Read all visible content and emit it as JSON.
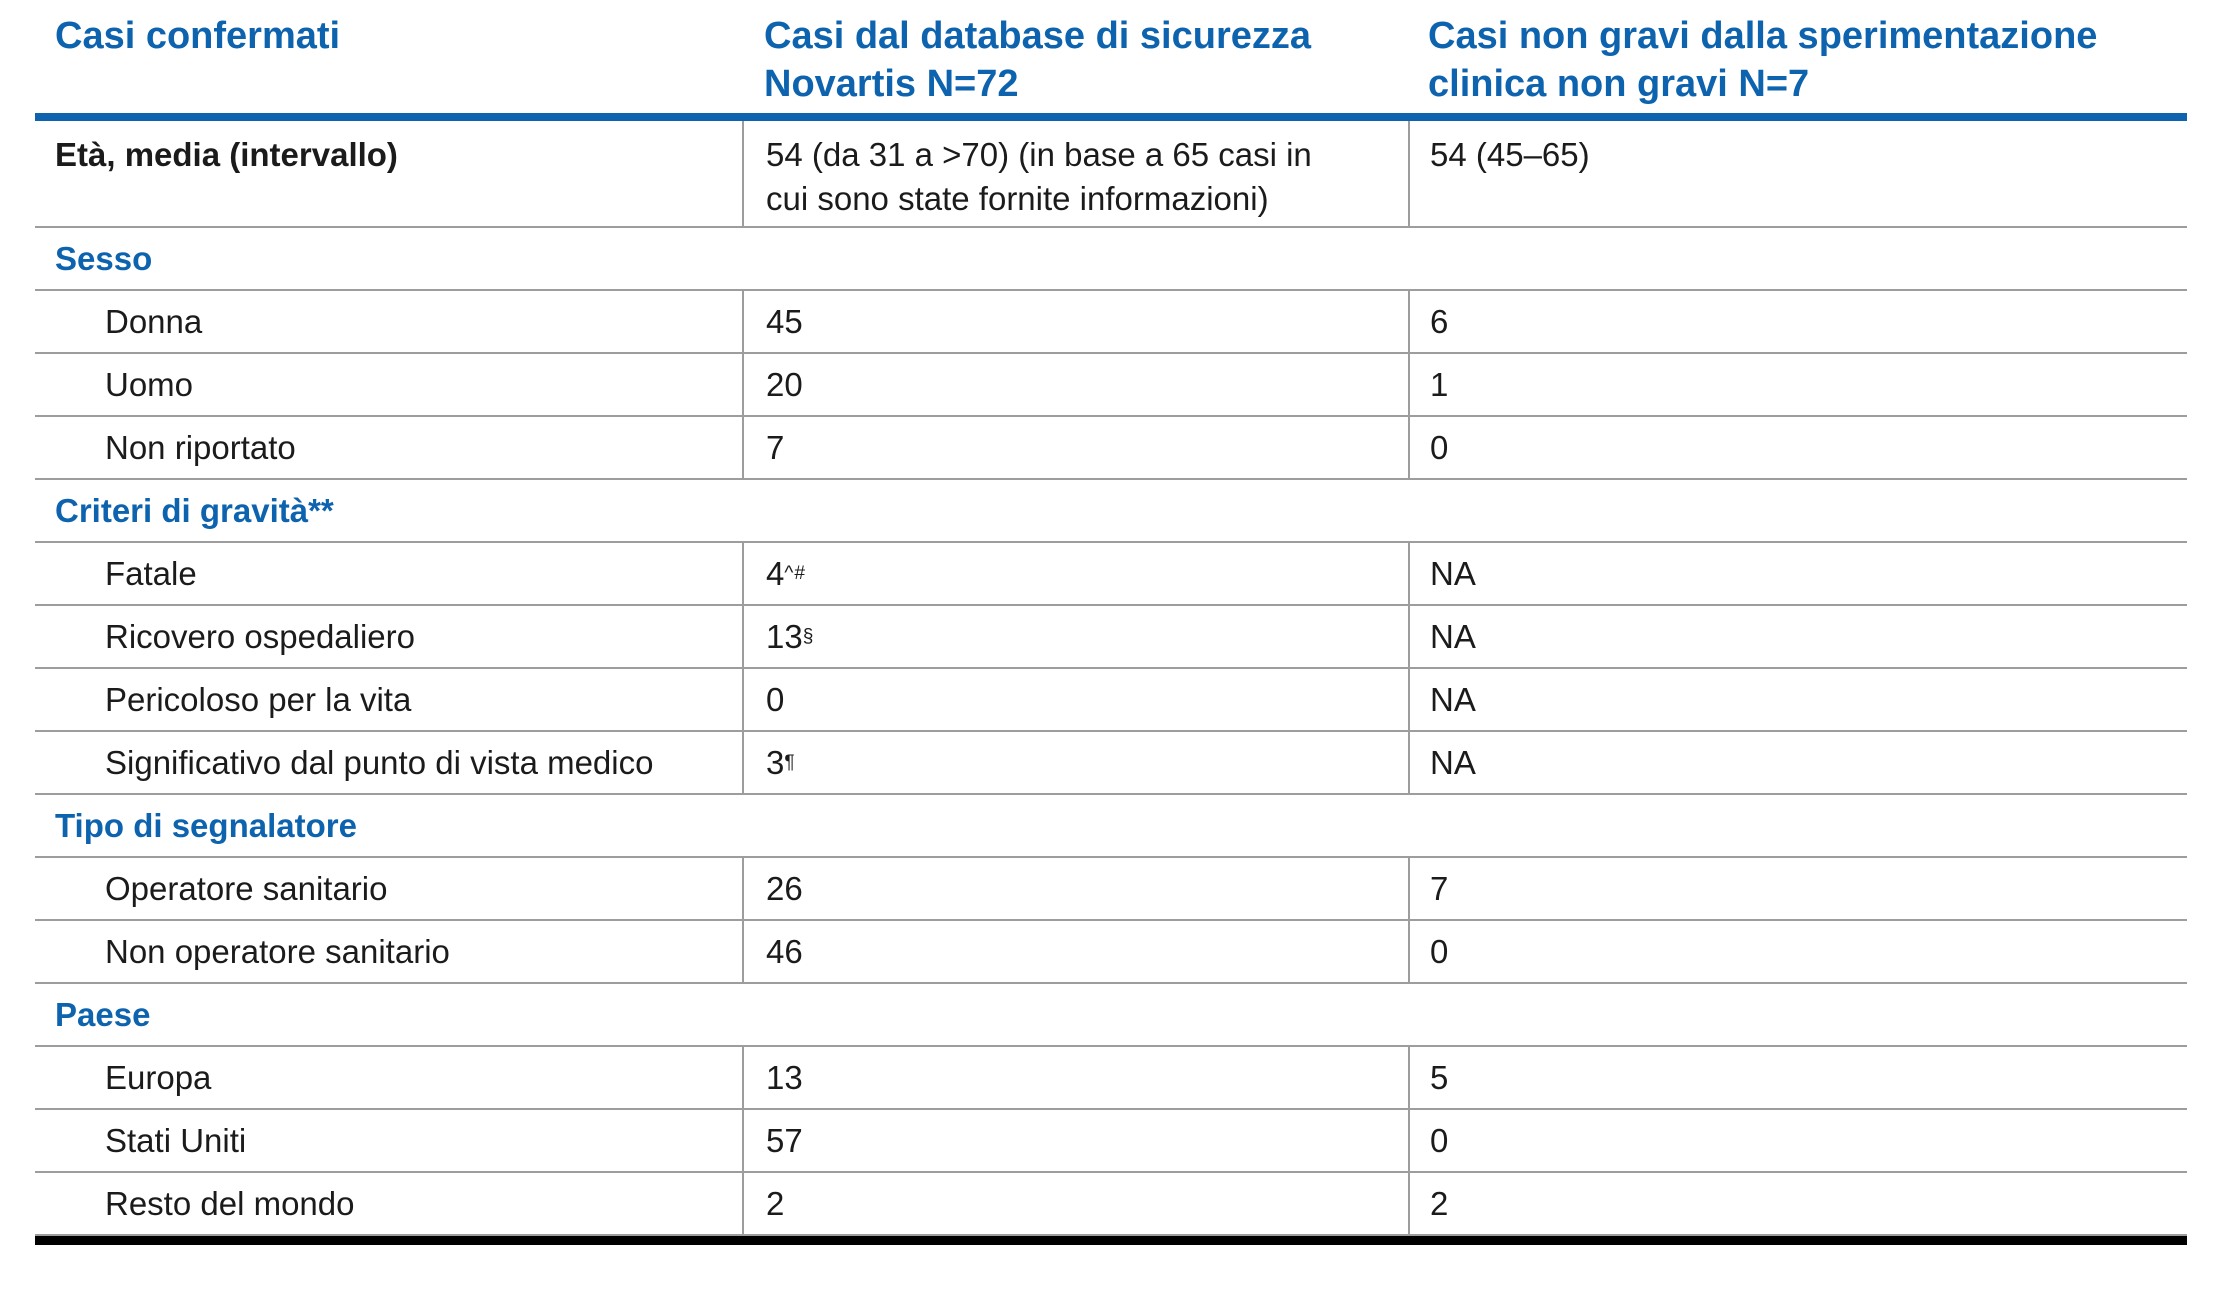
{
  "colors": {
    "accent": "#0d63ae",
    "grid": "#9d9d9d",
    "bottom_rule": "#000000",
    "text": "#1b1b1b"
  },
  "header": {
    "col1": "Casi confermati",
    "col2": "Casi dal database di sicurezza\nNovartis N=72",
    "col3": "Casi non gravi dalla sperimentazione\nclinica non gravi N=7"
  },
  "rows": [
    {
      "type": "data",
      "label": "Età, media (intervallo)",
      "db": {
        "v": "54 (da 31 a >70) (in base a 65 casi in\ncui sono state fornite informazioni)",
        "sup": ""
      },
      "trial": "54 (45–65)"
    },
    {
      "type": "section",
      "label": "Sesso"
    },
    {
      "type": "data",
      "label": "Donna",
      "db": {
        "v": "45",
        "sup": ""
      },
      "trial": "6"
    },
    {
      "type": "data",
      "label": "Uomo",
      "db": {
        "v": "20",
        "sup": ""
      },
      "trial": "1"
    },
    {
      "type": "data",
      "label": "Non riportato",
      "db": {
        "v": "7",
        "sup": ""
      },
      "trial": "0"
    },
    {
      "type": "section",
      "label": "Criteri di gravità**"
    },
    {
      "type": "data",
      "label": "Fatale",
      "db": {
        "v": "4",
        "sup": "^#"
      },
      "trial": "NA"
    },
    {
      "type": "data",
      "label": "Ricovero ospedaliero",
      "db": {
        "v": "13",
        "sup": "§"
      },
      "trial": "NA"
    },
    {
      "type": "data",
      "label": "Pericoloso per la vita",
      "db": {
        "v": "0",
        "sup": ""
      },
      "trial": "NA"
    },
    {
      "type": "data",
      "label": "Significativo dal punto di vista medico",
      "db": {
        "v": "3",
        "sup": "¶"
      },
      "trial": "NA"
    },
    {
      "type": "section",
      "label": "Tipo di segnalatore"
    },
    {
      "type": "data",
      "label": "Operatore sanitario",
      "db": {
        "v": "26",
        "sup": ""
      },
      "trial": "7"
    },
    {
      "type": "data",
      "label": "Non operatore sanitario",
      "db": {
        "v": "46",
        "sup": ""
      },
      "trial": "0"
    },
    {
      "type": "section",
      "label": "Paese"
    },
    {
      "type": "data",
      "label": "Europa",
      "db": {
        "v": "13",
        "sup": ""
      },
      "trial": "5"
    },
    {
      "type": "data",
      "label": "Stati Uniti",
      "db": {
        "v": "57",
        "sup": ""
      },
      "trial": "0"
    },
    {
      "type": "data",
      "label": "Resto del mondo",
      "db": {
        "v": "2",
        "sup": ""
      },
      "trial": "2"
    }
  ]
}
